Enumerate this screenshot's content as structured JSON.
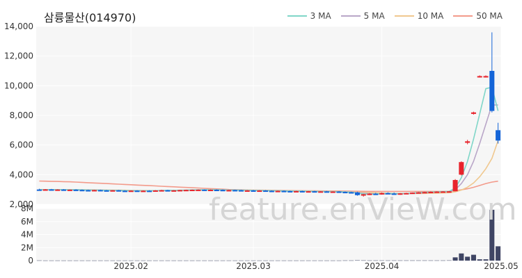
{
  "chart_data": {
    "type": "candlestick",
    "title": "삼륭물산(014970)",
    "watermark": "feature.enVieW.com",
    "legend": [
      {
        "label": "3 MA",
        "color": "#7fd6c8"
      },
      {
        "label": "5 MA",
        "color": "#b9a6c8"
      },
      {
        "label": "10 MA",
        "color": "#f0c88f"
      },
      {
        "label": "50 MA",
        "color": "#f39a8a"
      }
    ],
    "colors": {
      "up": "#e8242c",
      "down": "#1565d8",
      "volume": "#3f4564"
    },
    "price_axis": {
      "min": 2000,
      "max": 14000,
      "ticks": [
        "2,000",
        "4,000",
        "6,000",
        "8,000",
        "10,000",
        "12,000",
        "14,000"
      ],
      "tick_values": [
        2000,
        4000,
        6000,
        8000,
        10000,
        12000,
        14000
      ]
    },
    "volume_axis": {
      "min": 0,
      "max": 8000000,
      "ticks": [
        "0",
        "2M",
        "4M",
        "6M",
        "8M"
      ],
      "tick_values": [
        0,
        2000000,
        4000000,
        6000000,
        8000000
      ]
    },
    "x_axis": {
      "ticks": [
        "2025.02",
        "2025.03",
        "2025.04",
        "2025.05"
      ],
      "tick_index": [
        15,
        35,
        56,
        78
      ]
    },
    "candles": [
      [
        3000,
        3050,
        2930,
        2960
      ],
      [
        2960,
        3030,
        2940,
        3010
      ],
      [
        3010,
        3040,
        2960,
        2980
      ],
      [
        2980,
        3020,
        2950,
        3000
      ],
      [
        3000,
        3030,
        2960,
        2970
      ],
      [
        2970,
        3000,
        2940,
        2990
      ],
      [
        2990,
        3020,
        2960,
        2975
      ],
      [
        2975,
        3000,
        2940,
        2960
      ],
      [
        2960,
        2990,
        2930,
        2950
      ],
      [
        2950,
        2980,
        2920,
        2965
      ],
      [
        2965,
        2990,
        2930,
        2945
      ],
      [
        2945,
        2970,
        2920,
        2930
      ],
      [
        2930,
        2960,
        2900,
        2950
      ],
      [
        2950,
        2970,
        2910,
        2920
      ],
      [
        2920,
        2950,
        2880,
        2900
      ],
      [
        2900,
        2940,
        2870,
        2925
      ],
      [
        2925,
        2950,
        2890,
        2910
      ],
      [
        2910,
        2940,
        2880,
        2920
      ],
      [
        2920,
        2950,
        2890,
        2915
      ],
      [
        2915,
        2960,
        2900,
        2940
      ],
      [
        2940,
        2980,
        2910,
        2955
      ],
      [
        2955,
        2980,
        2920,
        2930
      ],
      [
        2930,
        2960,
        2900,
        2945
      ],
      [
        2945,
        2980,
        2930,
        2965
      ],
      [
        2965,
        2990,
        2940,
        2975
      ],
      [
        2975,
        3000,
        2950,
        2985
      ],
      [
        2985,
        3010,
        2960,
        2990
      ],
      [
        2990,
        3010,
        2960,
        2970
      ],
      [
        2970,
        3000,
        2950,
        2985
      ],
      [
        2985,
        3010,
        2960,
        2975
      ],
      [
        2975,
        3000,
        2940,
        2950
      ],
      [
        2950,
        2980,
        2930,
        2965
      ],
      [
        2965,
        2990,
        2940,
        2955
      ],
      [
        2955,
        2980,
        2920,
        2930
      ],
      [
        2930,
        2960,
        2900,
        2940
      ],
      [
        2940,
        2970,
        2910,
        2920
      ],
      [
        2920,
        2950,
        2890,
        2935
      ],
      [
        2935,
        2960,
        2900,
        2915
      ],
      [
        2915,
        2940,
        2880,
        2900
      ],
      [
        2900,
        2930,
        2870,
        2910
      ],
      [
        2910,
        2940,
        2880,
        2895
      ],
      [
        2895,
        2920,
        2860,
        2880
      ],
      [
        2880,
        2910,
        2850,
        2895
      ],
      [
        2895,
        2920,
        2860,
        2870
      ],
      [
        2870,
        2900,
        2840,
        2885
      ],
      [
        2885,
        2910,
        2850,
        2860
      ],
      [
        2860,
        2890,
        2830,
        2875
      ],
      [
        2875,
        2900,
        2840,
        2850
      ],
      [
        2850,
        2880,
        2820,
        2865
      ],
      [
        2865,
        2890,
        2830,
        2840
      ],
      [
        2840,
        2870,
        2800,
        2820
      ],
      [
        2820,
        2850,
        2780,
        2800
      ],
      [
        2800,
        2850,
        2580,
        2620
      ],
      [
        2620,
        2700,
        2520,
        2680
      ],
      [
        2680,
        2760,
        2620,
        2720
      ],
      [
        2720,
        2780,
        2660,
        2690
      ],
      [
        2690,
        2800,
        2650,
        2760
      ],
      [
        2760,
        2810,
        2700,
        2730
      ],
      [
        2730,
        2800,
        2650,
        2680
      ],
      [
        2680,
        2760,
        2640,
        2740
      ],
      [
        2740,
        2780,
        2700,
        2760
      ],
      [
        2760,
        2800,
        2720,
        2790
      ],
      [
        2790,
        2830,
        2750,
        2810
      ],
      [
        2810,
        2850,
        2780,
        2830
      ],
      [
        2830,
        2870,
        2790,
        2845
      ],
      [
        2845,
        2880,
        2810,
        2860
      ],
      [
        2860,
        2890,
        2820,
        2870
      ],
      [
        2870,
        2900,
        2840,
        2880
      ],
      [
        2880,
        3700,
        2880,
        3640
      ],
      [
        4000,
        4900,
        3950,
        4850
      ],
      [
        6150,
        6350,
        6050,
        6250
      ],
      [
        8100,
        8250,
        8050,
        8200
      ],
      [
        10600,
        10700,
        10550,
        10650
      ],
      [
        10600,
        10700,
        10550,
        10650
      ],
      [
        11000,
        13600,
        8200,
        8300
      ],
      [
        7000,
        7500,
        6100,
        6300
      ]
    ],
    "volumes": [
      0.03,
      0.02,
      0.02,
      0.02,
      0.02,
      0.02,
      0.02,
      0.02,
      0.02,
      0.02,
      0.02,
      0.02,
      0.02,
      0.02,
      0.02,
      0.02,
      0.02,
      0.02,
      0.02,
      0.02,
      0.02,
      0.02,
      0.02,
      0.02,
      0.02,
      0.02,
      0.02,
      0.02,
      0.02,
      0.02,
      0.02,
      0.02,
      0.02,
      0.02,
      0.02,
      0.02,
      0.02,
      0.02,
      0.02,
      0.02,
      0.02,
      0.02,
      0.02,
      0.02,
      0.02,
      0.02,
      0.02,
      0.02,
      0.02,
      0.02,
      0.03,
      0.03,
      0.05,
      0.04,
      0.03,
      0.03,
      0.03,
      0.03,
      0.03,
      0.03,
      0.03,
      0.03,
      0.03,
      0.03,
      0.03,
      0.03,
      0.03,
      0.04,
      0.5,
      1.1,
      0.6,
      0.9,
      0.2,
      0.2,
      7.8,
      2.2
    ],
    "ma3": [
      2990,
      2990,
      2995,
      2995,
      2990,
      2985,
      2980,
      2975,
      2960,
      2955,
      2950,
      2945,
      2940,
      2935,
      2925,
      2920,
      2915,
      2915,
      2915,
      2925,
      2935,
      2945,
      2945,
      2950,
      2960,
      2975,
      2985,
      2985,
      2980,
      2975,
      2970,
      2960,
      2955,
      2950,
      2940,
      2935,
      2925,
      2920,
      2915,
      2910,
      2900,
      2895,
      2890,
      2885,
      2875,
      2870,
      2865,
      2860,
      2855,
      2850,
      2830,
      2810,
      2750,
      2700,
      2680,
      2700,
      2720,
      2730,
      2720,
      2715,
      2730,
      2760,
      2790,
      2810,
      2830,
      2845,
      2860,
      2870,
      3100,
      3800,
      4900,
      6400,
      8100,
      9800,
      9900,
      8300
    ],
    "ma5": [
      2990,
      2990,
      2990,
      2990,
      2990,
      2985,
      2980,
      2975,
      2970,
      2960,
      2955,
      2950,
      2945,
      2940,
      2930,
      2925,
      2920,
      2915,
      2915,
      2920,
      2930,
      2935,
      2940,
      2945,
      2950,
      2960,
      2970,
      2975,
      2980,
      2980,
      2975,
      2970,
      2965,
      2955,
      2950,
      2940,
      2935,
      2925,
      2920,
      2915,
      2905,
      2900,
      2895,
      2890,
      2880,
      2875,
      2870,
      2865,
      2860,
      2855,
      2845,
      2830,
      2790,
      2750,
      2720,
      2700,
      2690,
      2700,
      2710,
      2715,
      2720,
      2735,
      2760,
      2780,
      2800,
      2820,
      2840,
      2855,
      2980,
      3400,
      4000,
      4900,
      6100,
      7400,
      8700,
      8700
    ],
    "ma10": [
      3000,
      2995,
      2995,
      2990,
      2990,
      2988,
      2985,
      2982,
      2978,
      2974,
      2970,
      2965,
      2960,
      2955,
      2950,
      2944,
      2938,
      2932,
      2928,
      2925,
      2925,
      2926,
      2928,
      2932,
      2936,
      2942,
      2950,
      2956,
      2962,
      2966,
      2968,
      2968,
      2966,
      2962,
      2958,
      2952,
      2946,
      2940,
      2934,
      2928,
      2920,
      2914,
      2908,
      2902,
      2896,
      2890,
      2884,
      2878,
      2872,
      2866,
      2858,
      2848,
      2826,
      2806,
      2790,
      2776,
      2764,
      2752,
      2742,
      2734,
      2728,
      2726,
      2730,
      2736,
      2744,
      2756,
      2770,
      2784,
      2844,
      2960,
      3160,
      3440,
      3860,
      4400,
      5100,
      6300
    ],
    "ma50": [
      3570,
      3560,
      3550,
      3540,
      3530,
      3520,
      3500,
      3480,
      3460,
      3440,
      3420,
      3400,
      3380,
      3360,
      3340,
      3320,
      3300,
      3280,
      3260,
      3240,
      3220,
      3200,
      3180,
      3160,
      3140,
      3120,
      3100,
      3080,
      3060,
      3040,
      3020,
      3000,
      2990,
      2980,
      2970,
      2960,
      2955,
      2950,
      2945,
      2940,
      2935,
      2930,
      2925,
      2920,
      2915,
      2910,
      2905,
      2900,
      2900,
      2900,
      2895,
      2885,
      2880,
      2875,
      2870,
      2870,
      2870,
      2870,
      2870,
      2870,
      2870,
      2870,
      2870,
      2870,
      2870,
      2870,
      2870,
      2880,
      2920,
      2980,
      3050,
      3150,
      3270,
      3400,
      3500,
      3560
    ]
  }
}
